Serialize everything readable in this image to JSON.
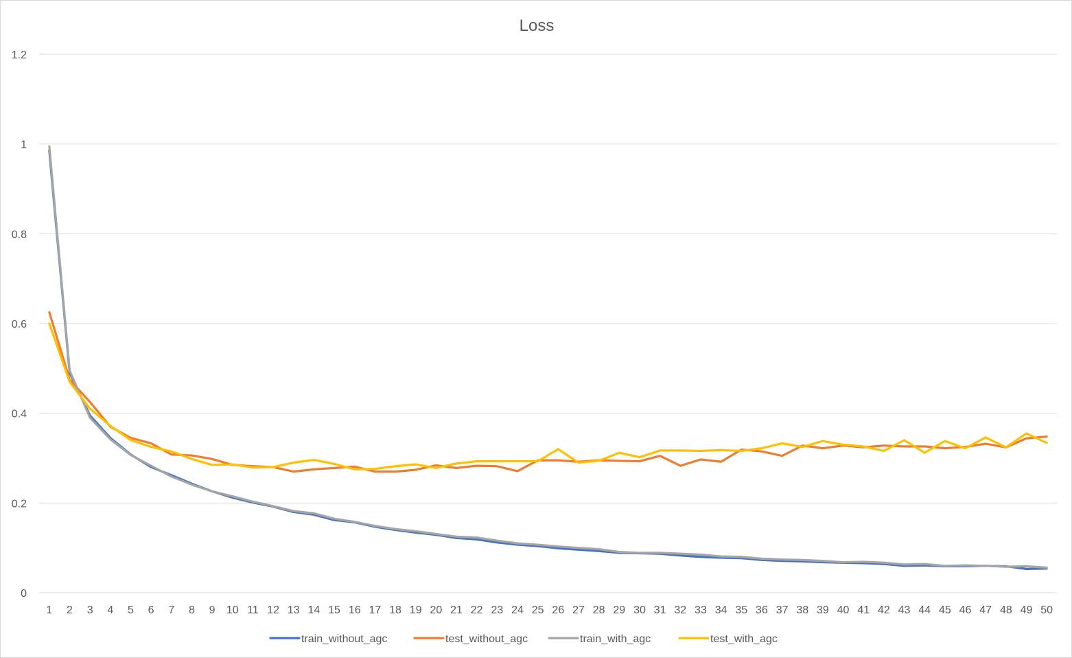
{
  "chart_data": {
    "type": "line",
    "title": "Loss",
    "xlabel": "",
    "ylabel": "",
    "x": [
      1,
      2,
      3,
      4,
      5,
      6,
      7,
      8,
      9,
      10,
      11,
      12,
      13,
      14,
      15,
      16,
      17,
      18,
      19,
      20,
      21,
      22,
      23,
      24,
      25,
      26,
      27,
      28,
      29,
      30,
      31,
      32,
      33,
      34,
      35,
      36,
      37,
      38,
      39,
      40,
      41,
      42,
      43,
      44,
      45,
      46,
      47,
      48,
      49,
      50
    ],
    "ylim": [
      0,
      1.2
    ],
    "yticks": [
      "0",
      "0.2",
      "0.4",
      "0.6",
      "0.8",
      "1",
      "1.2"
    ],
    "ytick_values": [
      0,
      0.2,
      0.4,
      0.6,
      0.8,
      1.0,
      1.2
    ],
    "grid": true,
    "legend_position": "bottom",
    "series": [
      {
        "name": "train_without_agc",
        "color": "#4472C4",
        "values": [
          0.985,
          0.49,
          0.395,
          0.345,
          0.308,
          0.28,
          0.262,
          0.243,
          0.226,
          0.212,
          0.201,
          0.192,
          0.18,
          0.174,
          0.162,
          0.157,
          0.147,
          0.14,
          0.134,
          0.129,
          0.122,
          0.119,
          0.112,
          0.107,
          0.104,
          0.099,
          0.096,
          0.093,
          0.089,
          0.088,
          0.087,
          0.083,
          0.08,
          0.078,
          0.077,
          0.073,
          0.071,
          0.07,
          0.068,
          0.067,
          0.066,
          0.064,
          0.06,
          0.061,
          0.059,
          0.059,
          0.06,
          0.059,
          0.053,
          0.054
        ]
      },
      {
        "name": "test_without_agc",
        "color": "#ED7D31",
        "values": [
          0.625,
          0.475,
          0.425,
          0.37,
          0.345,
          0.333,
          0.308,
          0.306,
          0.298,
          0.285,
          0.282,
          0.28,
          0.27,
          0.275,
          0.278,
          0.281,
          0.27,
          0.27,
          0.274,
          0.284,
          0.278,
          0.283,
          0.282,
          0.271,
          0.295,
          0.295,
          0.292,
          0.295,
          0.294,
          0.293,
          0.305,
          0.283,
          0.297,
          0.292,
          0.319,
          0.315,
          0.305,
          0.328,
          0.322,
          0.328,
          0.324,
          0.328,
          0.326,
          0.326,
          0.322,
          0.325,
          0.332,
          0.324,
          0.344,
          0.348
        ]
      },
      {
        "name": "train_with_agc",
        "color": "#A5A5A5",
        "values": [
          0.995,
          0.495,
          0.39,
          0.342,
          0.307,
          0.283,
          0.259,
          0.241,
          0.226,
          0.215,
          0.203,
          0.193,
          0.182,
          0.177,
          0.165,
          0.158,
          0.149,
          0.142,
          0.137,
          0.131,
          0.125,
          0.123,
          0.116,
          0.11,
          0.107,
          0.103,
          0.1,
          0.097,
          0.091,
          0.089,
          0.089,
          0.087,
          0.085,
          0.081,
          0.08,
          0.076,
          0.074,
          0.073,
          0.071,
          0.068,
          0.069,
          0.067,
          0.063,
          0.064,
          0.06,
          0.061,
          0.06,
          0.058,
          0.059,
          0.056
        ]
      },
      {
        "name": "test_with_agc",
        "color": "#FFC000",
        "values": [
          0.6,
          0.47,
          0.41,
          0.372,
          0.34,
          0.325,
          0.315,
          0.298,
          0.285,
          0.286,
          0.279,
          0.28,
          0.29,
          0.296,
          0.287,
          0.275,
          0.276,
          0.282,
          0.286,
          0.278,
          0.288,
          0.293,
          0.293,
          0.293,
          0.293,
          0.32,
          0.29,
          0.294,
          0.312,
          0.302,
          0.317,
          0.317,
          0.316,
          0.318,
          0.316,
          0.322,
          0.333,
          0.325,
          0.338,
          0.33,
          0.326,
          0.316,
          0.34,
          0.312,
          0.338,
          0.322,
          0.346,
          0.324,
          0.355,
          0.334
        ]
      }
    ]
  }
}
